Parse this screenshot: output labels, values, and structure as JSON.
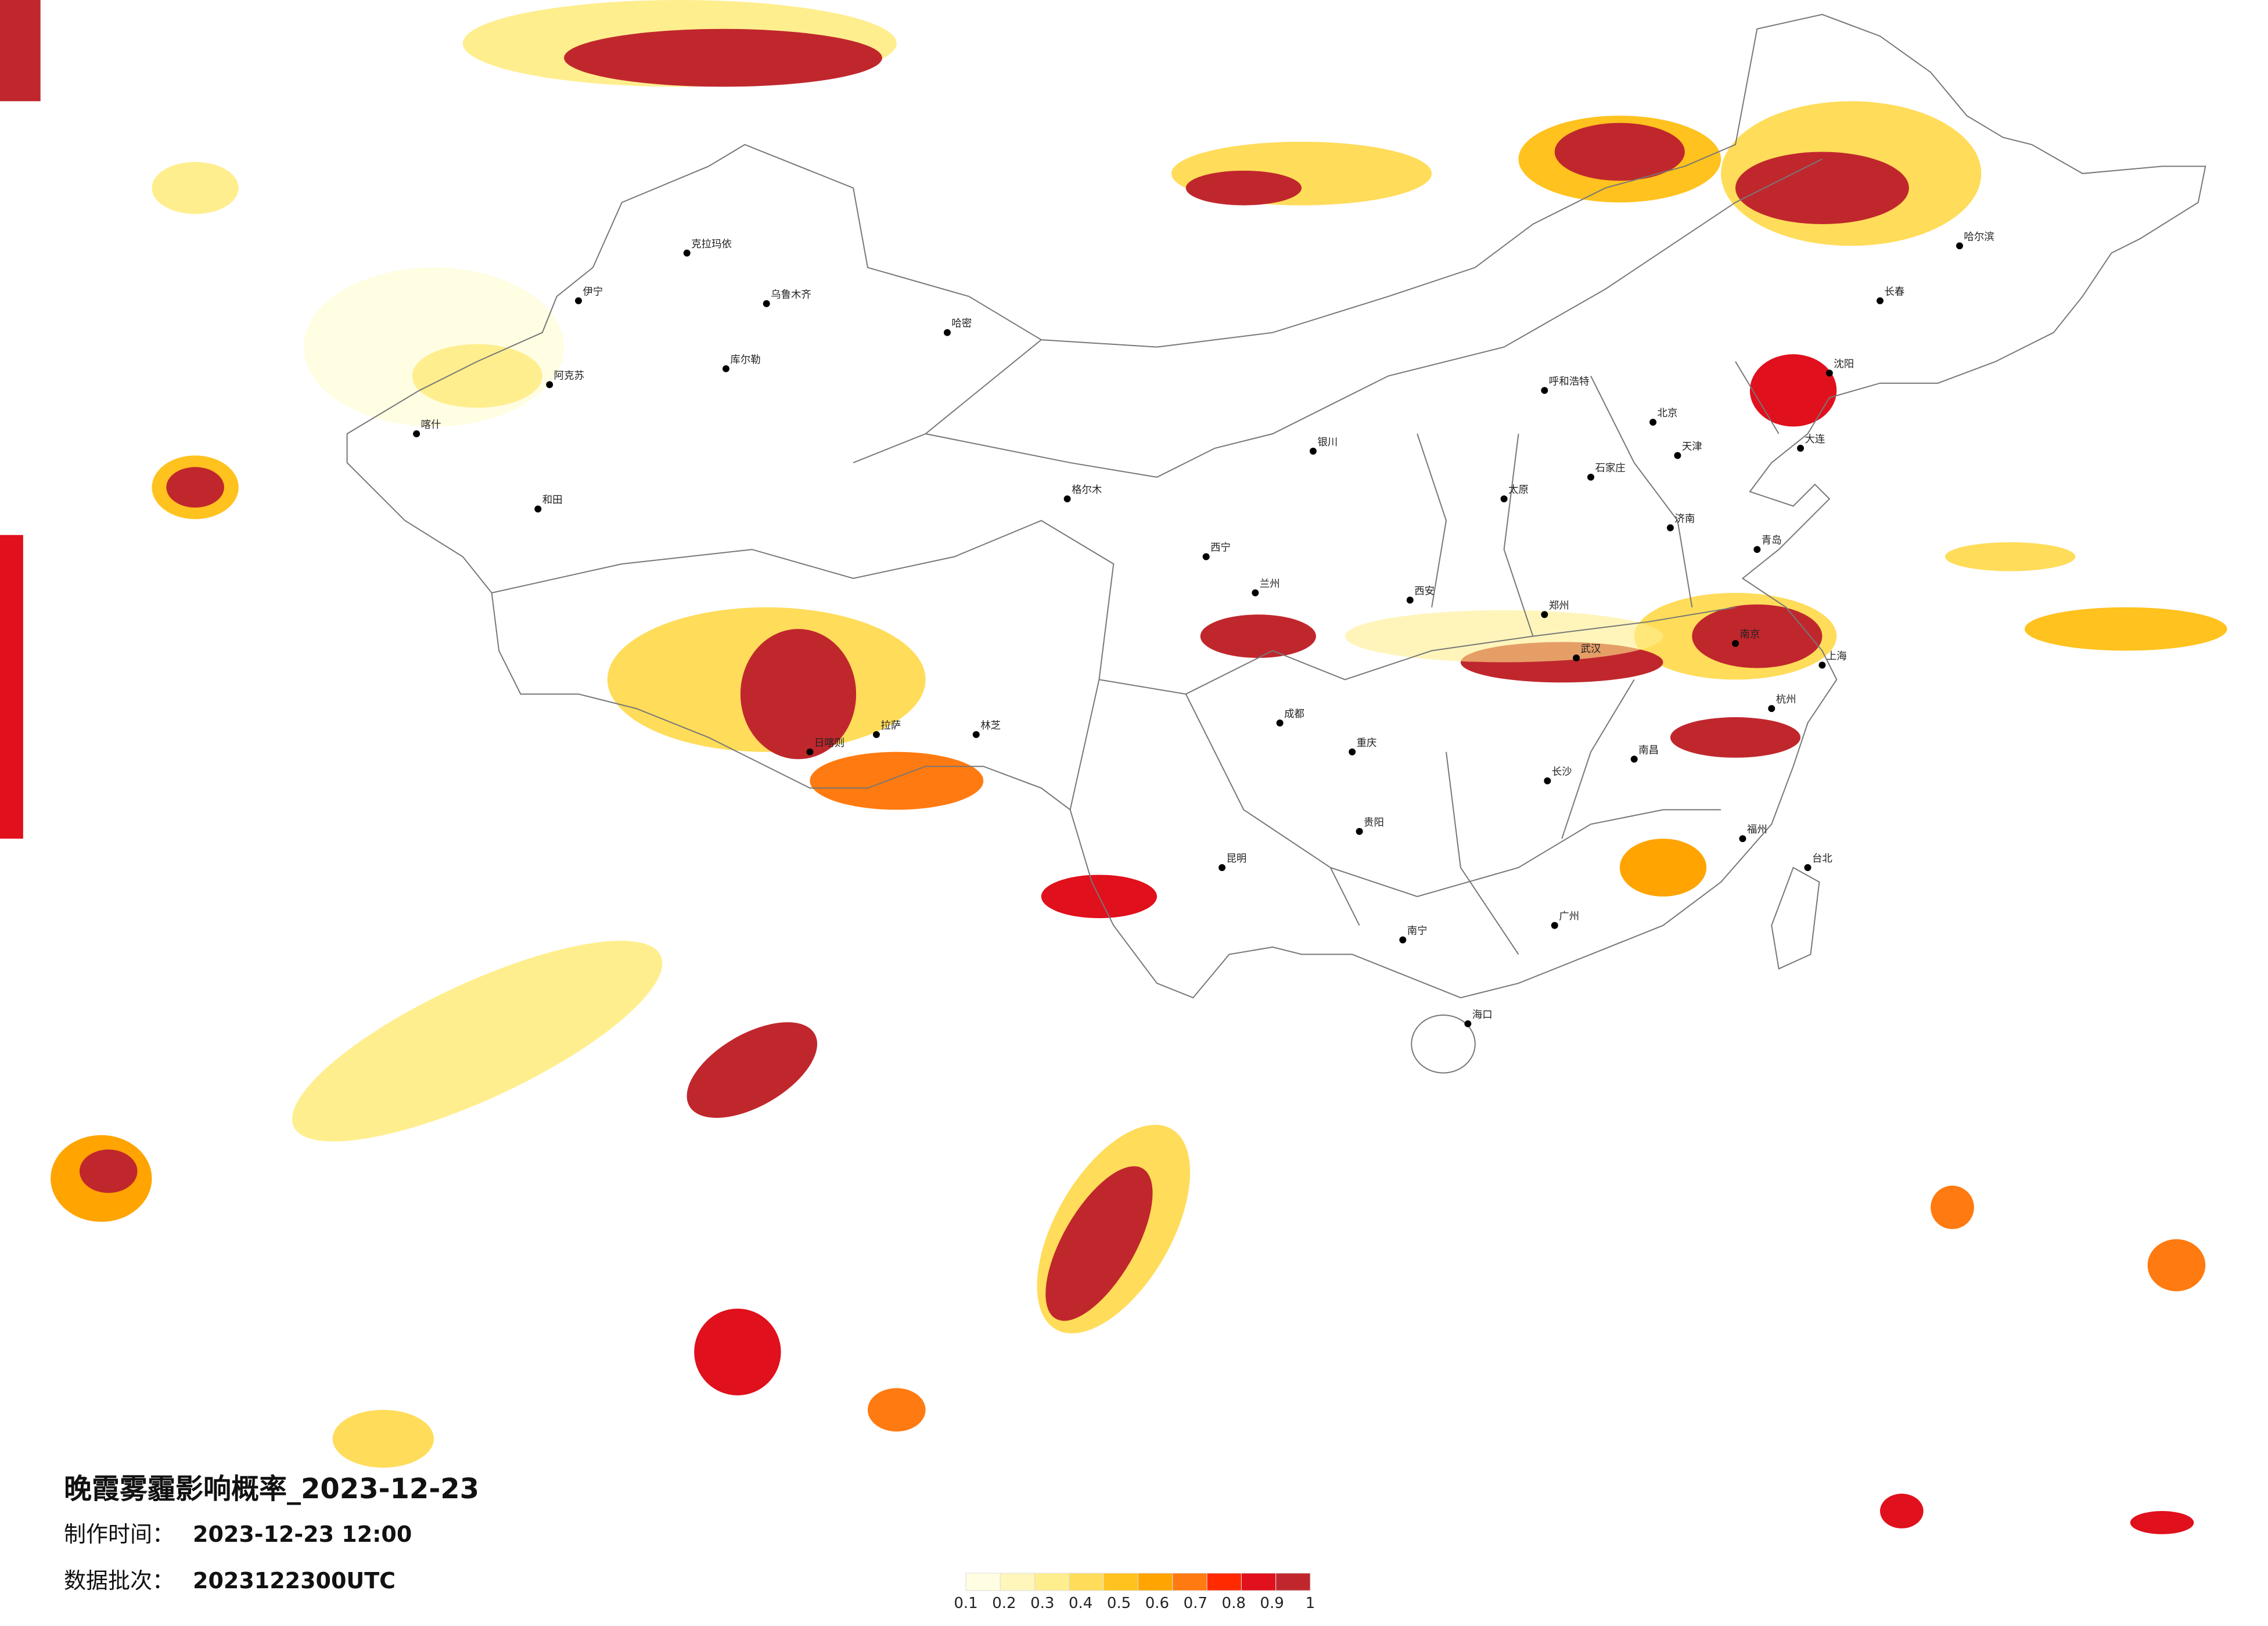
{
  "title": "晚霞雾霾影响概率_2023-12-23",
  "made_label": "制作时间：",
  "made_time": "2023-12-23 12:00",
  "batch_label": "数据批次：",
  "batch": "2023122300UTC",
  "legend": {
    "values": [
      0.1,
      0.2,
      0.3,
      0.4,
      0.5,
      0.6,
      0.7,
      0.8,
      0.9,
      1
    ],
    "colors": [
      "#fffde2",
      "#fff6bc",
      "#ffee8e",
      "#ffdc5a",
      "#ffc21e",
      "#ffa400",
      "#ff7a10",
      "#ff2a00",
      "#e0101c",
      "#c0272d"
    ]
  },
  "cities": [
    "克拉玛依",
    "乌鲁木齐",
    "哈密",
    "库尔勒",
    "伊宁",
    "阿克苏",
    "喀什",
    "和田",
    "日喀则",
    "拉萨",
    "林芝",
    "格尔木",
    "西宁",
    "兰州",
    "银川",
    "呼和浩特",
    "北京",
    "天津",
    "石家庄",
    "太原",
    "济南",
    "郑州",
    "西安",
    "成都",
    "重庆",
    "武汉",
    "南京",
    "上海",
    "杭州",
    "长沙",
    "南昌",
    "福州",
    "贵阳",
    "昆明",
    "南宁",
    "广州",
    "海口",
    "台北",
    "沈阳",
    "长春",
    "哈尔滨",
    "大连",
    "青岛"
  ]
}
